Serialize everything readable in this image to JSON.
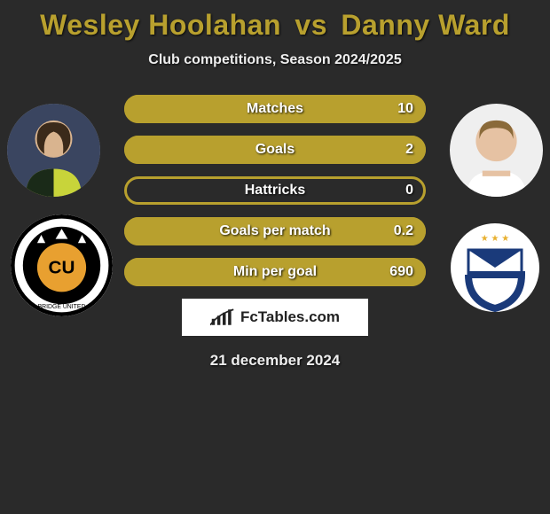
{
  "title": {
    "player1": "Wesley Hoolahan",
    "vs": "vs",
    "player2": "Danny Ward",
    "color": "#b8a02e"
  },
  "subtitle": "Club competitions, Season 2024/2025",
  "date": "21 december 2024",
  "brand": "FcTables.com",
  "accent_color": "#b8a02e",
  "background_color": "#2a2a2a",
  "bars": [
    {
      "label": "Matches",
      "value_text": "10",
      "fill_pct": 100
    },
    {
      "label": "Goals",
      "value_text": "2",
      "fill_pct": 100
    },
    {
      "label": "Hattricks",
      "value_text": "0",
      "fill_pct": 0
    },
    {
      "label": "Goals per match",
      "value_text": "0.2",
      "fill_pct": 100
    },
    {
      "label": "Min per goal",
      "value_text": "690",
      "fill_pct": 100
    }
  ],
  "avatars": {
    "left_alt": "player-1-photo",
    "right_alt": "player-2-photo",
    "club_left_alt": "club-1-badge",
    "club_right_alt": "club-2-badge"
  }
}
